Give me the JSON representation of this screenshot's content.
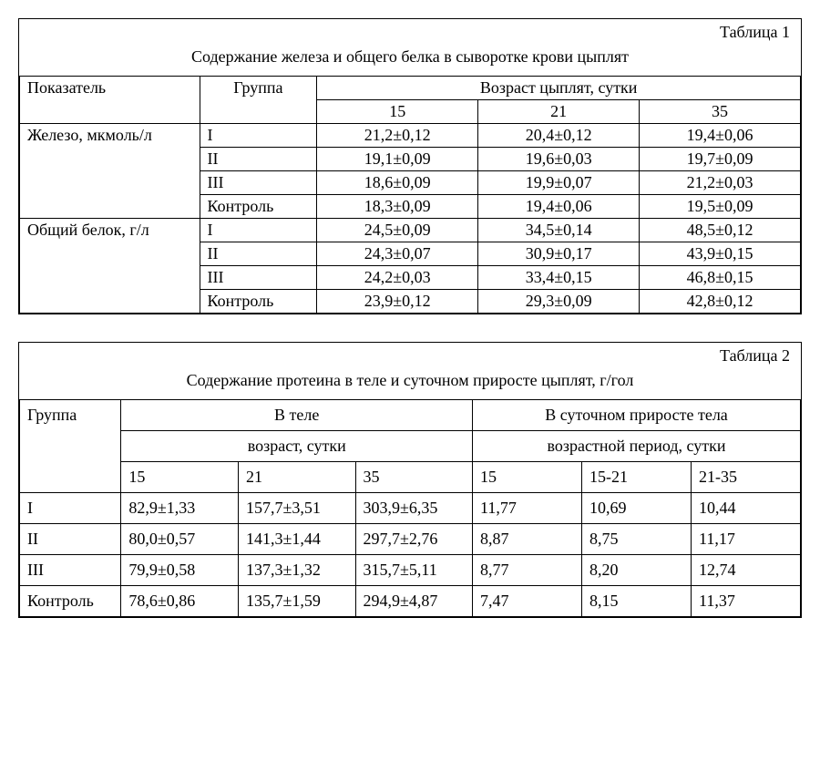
{
  "table1": {
    "label": "Таблица 1",
    "title": "Содержание железа и общего белка в сыворотке крови цыплят",
    "col_indicator": "Показатель",
    "col_group": "Группа",
    "col_age_header": "Возраст цыплят, сутки",
    "age_cols": [
      "15",
      "21",
      "35"
    ],
    "sections": [
      {
        "indicator": "Железо, мкмоль/л",
        "rows": [
          {
            "group": "I",
            "v": [
              "21,2±0,12",
              "20,4±0,12",
              "19,4±0,06"
            ]
          },
          {
            "group": "II",
            "v": [
              "19,1±0,09",
              "19,6±0,03",
              "19,7±0,09"
            ]
          },
          {
            "group": "III",
            "v": [
              "18,6±0,09",
              "19,9±0,07",
              "21,2±0,03"
            ]
          },
          {
            "group": "Контроль",
            "v": [
              "18,3±0,09",
              "19,4±0,06",
              "19,5±0,09"
            ]
          }
        ]
      },
      {
        "indicator": "Общий белок, г/л",
        "rows": [
          {
            "group": "I",
            "v": [
              "24,5±0,09",
              "34,5±0,14",
              "48,5±0,12"
            ]
          },
          {
            "group": "II",
            "v": [
              "24,3±0,07",
              "30,9±0,17",
              "43,9±0,15"
            ]
          },
          {
            "group": "III",
            "v": [
              "24,2±0,03",
              "33,4±0,15",
              "46,8±0,15"
            ]
          },
          {
            "group": "Контроль",
            "v": [
              "23,9±0,12",
              "29,3±0,09",
              "42,8±0,12"
            ]
          }
        ]
      }
    ]
  },
  "table2": {
    "label": "Таблица 2",
    "title": "Содержание протеина в теле и суточном приросте цыплят, г/гол",
    "col_group": "Группа",
    "body_header": "В теле",
    "daily_header": "В суточном приросте тела",
    "body_sub": "возраст, сутки",
    "daily_sub": "возрастной период, сутки",
    "body_cols": [
      "15",
      "21",
      "35"
    ],
    "daily_cols": [
      "15",
      "15-21",
      "21-35"
    ],
    "rows": [
      {
        "group": "I",
        "body": [
          "82,9±1,33",
          "157,7±3,51",
          "303,9±6,35"
        ],
        "daily": [
          "11,77",
          "10,69",
          "10,44"
        ]
      },
      {
        "group": "II",
        "body": [
          "80,0±0,57",
          "141,3±1,44",
          "297,7±2,76"
        ],
        "daily": [
          "8,87",
          "8,75",
          "11,17"
        ]
      },
      {
        "group": "III",
        "body": [
          "79,9±0,58",
          "137,3±1,32",
          "315,7±5,11"
        ],
        "daily": [
          "8,77",
          "8,20",
          "12,74"
        ]
      },
      {
        "group": "Контроль",
        "body": [
          "78,6±0,86",
          "135,7±1,59",
          "294,9±4,87"
        ],
        "daily": [
          "7,47",
          "8,15",
          "11,37"
        ]
      }
    ]
  },
  "style": {
    "font_family": "Times New Roman",
    "font_size_pt": 13,
    "border_color": "#000000",
    "background_color": "#ffffff",
    "text_color": "#000000"
  }
}
